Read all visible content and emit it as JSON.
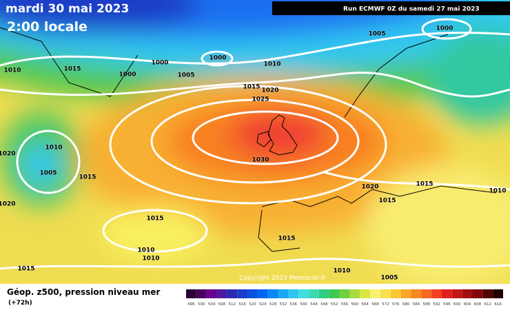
{
  "header": {
    "date": "mardi 30 mai 2023",
    "time": "2:00 locale",
    "run": "Run ECMWF 0Z du samedi 27 mai 2023"
  },
  "isobar_labels": [
    1010,
    1015,
    1000,
    1000,
    1005,
    1000,
    1010,
    1015,
    1020,
    1025,
    1005,
    1000,
    1010,
    1020,
    1005,
    1015,
    1020,
    1030,
    1020,
    1015,
    1010,
    1015,
    1015,
    1015,
    1010,
    1010,
    1015,
    1010,
    1005
  ],
  "copyright": "Copyright 2023 Meteociel.fr",
  "footer": {
    "title": "Géop. z500, pression niveau mer",
    "lead": "(+72h)"
  },
  "scale": {
    "labels": [
      496,
      500,
      504,
      508,
      512,
      516,
      520,
      524,
      528,
      532,
      536,
      540,
      544,
      548,
      552,
      556,
      560,
      564,
      568,
      572,
      576,
      580,
      584,
      588,
      592,
      596,
      600,
      604,
      608,
      612,
      616
    ],
    "colors": [
      "#2b0034",
      "#4b0060",
      "#6a0090",
      "#4a1aa0",
      "#2a2ab0",
      "#1a3cc8",
      "#0a50e0",
      "#0066f0",
      "#0a88f5",
      "#1aa8f5",
      "#2cc6f0",
      "#40dce0",
      "#3cd8b0",
      "#30cc80",
      "#40c850",
      "#70d040",
      "#a8dc40",
      "#d8e840",
      "#f8f070",
      "#f8e050",
      "#f8c830",
      "#f8a828",
      "#f88820",
      "#f86820",
      "#f04020",
      "#e02020",
      "#c01818",
      "#a01010",
      "#800808",
      "#500404",
      "#200000"
    ]
  }
}
